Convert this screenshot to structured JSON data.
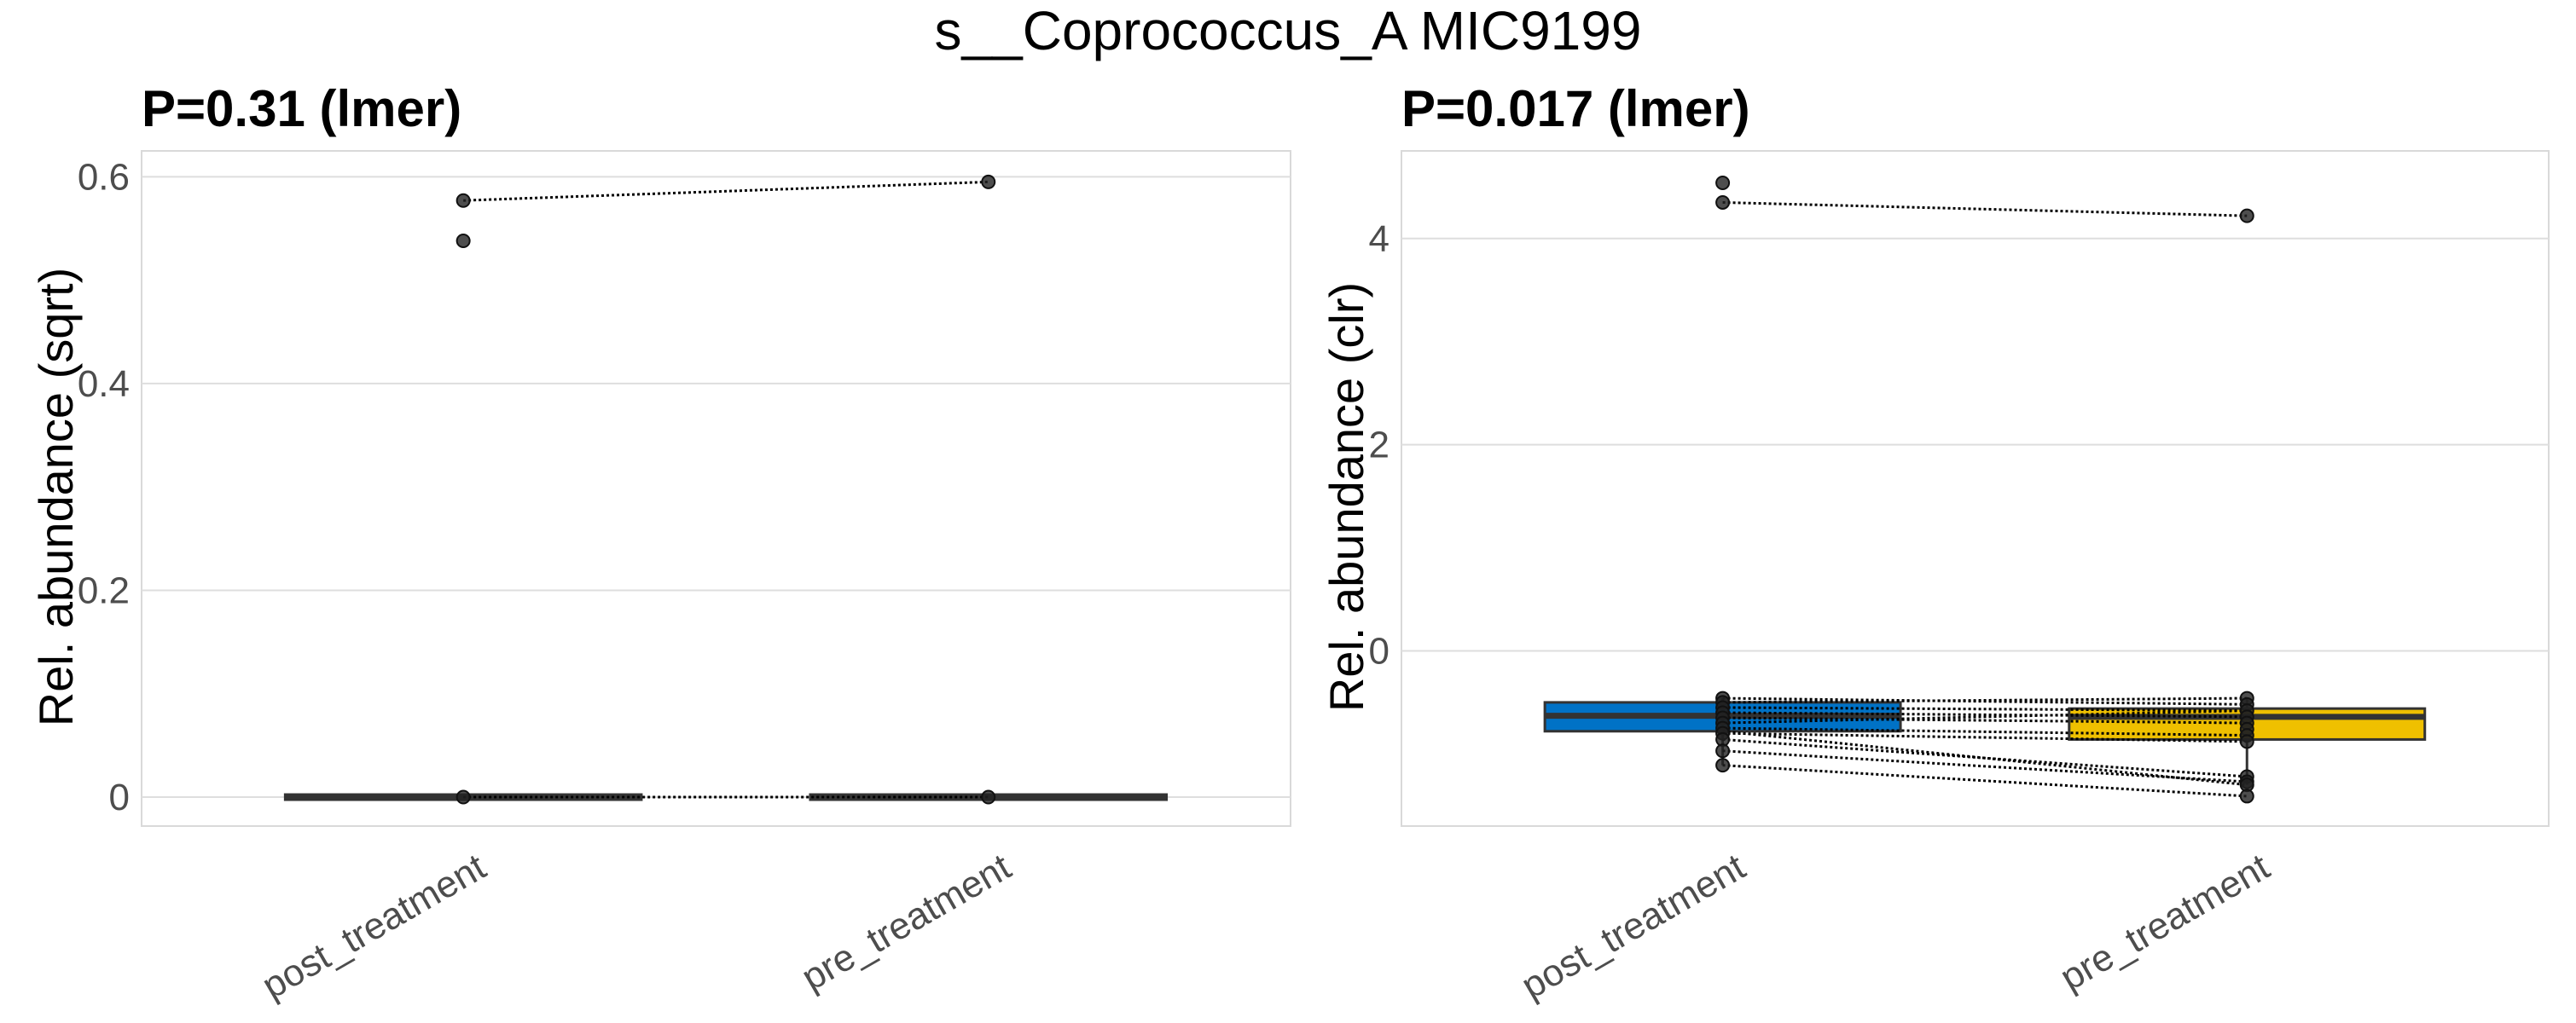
{
  "figure": {
    "title": "s__Coprococcus_A MIC9199"
  },
  "chart_data": [
    {
      "type": "box",
      "title": "P=0.31 (lmer)",
      "xlabel": "",
      "ylabel": "Rel. abundance (sqrt)",
      "categories": [
        "post_treatment",
        "pre_treatment"
      ],
      "ylim": [
        -0.028,
        0.625
      ],
      "yticks": [
        0,
        0.2,
        0.4,
        0.6
      ],
      "ytick_labels": [
        "0",
        "0.2",
        "0.4",
        "0.6"
      ],
      "grid": true,
      "boxes": [
        {
          "category": "post_treatment",
          "q1": 0,
          "median": 0,
          "q3": 0,
          "whisker_low": 0,
          "whisker_high": 0,
          "fill": "#0072C6"
        },
        {
          "category": "pre_treatment",
          "q1": 0,
          "median": 0,
          "q3": 0,
          "whisker_low": 0,
          "whisker_high": 0,
          "fill": "#EFC000"
        }
      ],
      "points": [
        {
          "category": "post_treatment",
          "y": 0.577
        },
        {
          "category": "post_treatment",
          "y": 0.538
        },
        {
          "category": "post_treatment",
          "y": 0
        },
        {
          "category": "pre_treatment",
          "y": 0.595
        },
        {
          "category": "pre_treatment",
          "y": 0
        }
      ],
      "pairs": [
        {
          "post": 0.577,
          "pre": 0.595
        },
        {
          "post": 0,
          "pre": 0
        }
      ]
    },
    {
      "type": "box",
      "title": "P=0.017 (lmer)",
      "xlabel": "",
      "ylabel": "Rel. abundance (clr)",
      "categories": [
        "post_treatment",
        "pre_treatment"
      ],
      "ylim": [
        -1.7,
        4.85
      ],
      "yticks": [
        0,
        2,
        4
      ],
      "ytick_labels": [
        "0",
        "2",
        "4"
      ],
      "grid": true,
      "boxes": [
        {
          "category": "post_treatment",
          "q1": -0.78,
          "median": -0.63,
          "q3": -0.5,
          "whisker_low": -1.11,
          "whisker_high": -0.46,
          "fill": "#0072C6"
        },
        {
          "category": "pre_treatment",
          "q1": -0.86,
          "median": -0.64,
          "q3": -0.56,
          "whisker_low": -1.3,
          "whisker_high": -0.46,
          "fill": "#EFC000"
        }
      ],
      "points": [
        {
          "category": "post_treatment",
          "y": 4.54
        },
        {
          "category": "post_treatment",
          "y": 4.35
        },
        {
          "category": "post_treatment",
          "y": -0.46
        },
        {
          "category": "post_treatment",
          "y": -0.5
        },
        {
          "category": "post_treatment",
          "y": -0.55
        },
        {
          "category": "post_treatment",
          "y": -0.6
        },
        {
          "category": "post_treatment",
          "y": -0.65
        },
        {
          "category": "post_treatment",
          "y": -0.7
        },
        {
          "category": "post_treatment",
          "y": -0.75
        },
        {
          "category": "post_treatment",
          "y": -0.8
        },
        {
          "category": "post_treatment",
          "y": -0.86
        },
        {
          "category": "post_treatment",
          "y": -0.97
        },
        {
          "category": "post_treatment",
          "y": -1.11
        },
        {
          "category": "pre_treatment",
          "y": 4.22
        },
        {
          "category": "pre_treatment",
          "y": -0.46
        },
        {
          "category": "pre_treatment",
          "y": -0.52
        },
        {
          "category": "pre_treatment",
          "y": -0.58
        },
        {
          "category": "pre_treatment",
          "y": -0.64
        },
        {
          "category": "pre_treatment",
          "y": -0.7
        },
        {
          "category": "pre_treatment",
          "y": -0.76
        },
        {
          "category": "pre_treatment",
          "y": -0.82
        },
        {
          "category": "pre_treatment",
          "y": -0.88
        },
        {
          "category": "pre_treatment",
          "y": -1.22
        },
        {
          "category": "pre_treatment",
          "y": -1.27
        },
        {
          "category": "pre_treatment",
          "y": -1.3
        },
        {
          "category": "pre_treatment",
          "y": -1.41
        }
      ],
      "pairs": [
        {
          "post": 4.35,
          "pre": 4.22
        },
        {
          "post": -0.46,
          "pre": -0.52
        },
        {
          "post": -0.5,
          "pre": -0.46
        },
        {
          "post": -0.55,
          "pre": -0.58
        },
        {
          "post": -0.6,
          "pre": -0.64
        },
        {
          "post": -0.65,
          "pre": -0.7
        },
        {
          "post": -0.7,
          "pre": -0.58
        },
        {
          "post": -0.75,
          "pre": -0.82
        },
        {
          "post": -0.8,
          "pre": -0.88
        },
        {
          "post": -0.86,
          "pre": -1.22
        },
        {
          "post": -0.97,
          "pre": -1.27
        },
        {
          "post": -1.11,
          "pre": -1.41
        },
        {
          "post": -0.78,
          "pre": -1.3
        }
      ]
    }
  ]
}
